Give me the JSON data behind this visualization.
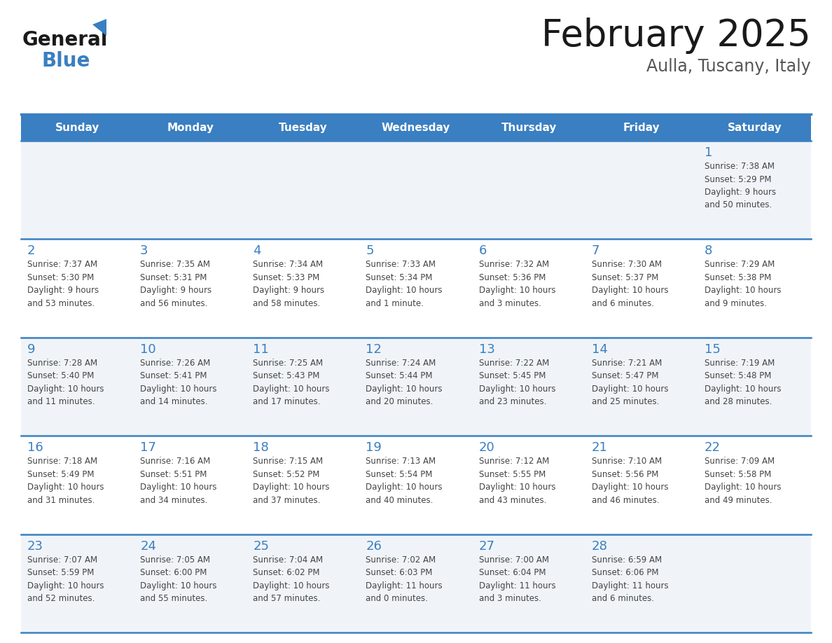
{
  "title": "February 2025",
  "subtitle": "Aulla, Tuscany, Italy",
  "header_bg": "#3A7FC1",
  "header_fg": "#FFFFFF",
  "row_colors": [
    "#F0F4F8",
    "#FFFFFF",
    "#F0F4F8",
    "#FFFFFF",
    "#F0F4F8"
  ],
  "day_num_color": "#3A7FC1",
  "info_color": "#444444",
  "separator_color": "#3A7FC1",
  "days_of_week": [
    "Sunday",
    "Monday",
    "Tuesday",
    "Wednesday",
    "Thursday",
    "Friday",
    "Saturday"
  ],
  "weeks": [
    [
      {
        "day": null,
        "info": null
      },
      {
        "day": null,
        "info": null
      },
      {
        "day": null,
        "info": null
      },
      {
        "day": null,
        "info": null
      },
      {
        "day": null,
        "info": null
      },
      {
        "day": null,
        "info": null
      },
      {
        "day": 1,
        "info": "Sunrise: 7:38 AM\nSunset: 5:29 PM\nDaylight: 9 hours\nand 50 minutes."
      }
    ],
    [
      {
        "day": 2,
        "info": "Sunrise: 7:37 AM\nSunset: 5:30 PM\nDaylight: 9 hours\nand 53 minutes."
      },
      {
        "day": 3,
        "info": "Sunrise: 7:35 AM\nSunset: 5:31 PM\nDaylight: 9 hours\nand 56 minutes."
      },
      {
        "day": 4,
        "info": "Sunrise: 7:34 AM\nSunset: 5:33 PM\nDaylight: 9 hours\nand 58 minutes."
      },
      {
        "day": 5,
        "info": "Sunrise: 7:33 AM\nSunset: 5:34 PM\nDaylight: 10 hours\nand 1 minute."
      },
      {
        "day": 6,
        "info": "Sunrise: 7:32 AM\nSunset: 5:36 PM\nDaylight: 10 hours\nand 3 minutes."
      },
      {
        "day": 7,
        "info": "Sunrise: 7:30 AM\nSunset: 5:37 PM\nDaylight: 10 hours\nand 6 minutes."
      },
      {
        "day": 8,
        "info": "Sunrise: 7:29 AM\nSunset: 5:38 PM\nDaylight: 10 hours\nand 9 minutes."
      }
    ],
    [
      {
        "day": 9,
        "info": "Sunrise: 7:28 AM\nSunset: 5:40 PM\nDaylight: 10 hours\nand 11 minutes."
      },
      {
        "day": 10,
        "info": "Sunrise: 7:26 AM\nSunset: 5:41 PM\nDaylight: 10 hours\nand 14 minutes."
      },
      {
        "day": 11,
        "info": "Sunrise: 7:25 AM\nSunset: 5:43 PM\nDaylight: 10 hours\nand 17 minutes."
      },
      {
        "day": 12,
        "info": "Sunrise: 7:24 AM\nSunset: 5:44 PM\nDaylight: 10 hours\nand 20 minutes."
      },
      {
        "day": 13,
        "info": "Sunrise: 7:22 AM\nSunset: 5:45 PM\nDaylight: 10 hours\nand 23 minutes."
      },
      {
        "day": 14,
        "info": "Sunrise: 7:21 AM\nSunset: 5:47 PM\nDaylight: 10 hours\nand 25 minutes."
      },
      {
        "day": 15,
        "info": "Sunrise: 7:19 AM\nSunset: 5:48 PM\nDaylight: 10 hours\nand 28 minutes."
      }
    ],
    [
      {
        "day": 16,
        "info": "Sunrise: 7:18 AM\nSunset: 5:49 PM\nDaylight: 10 hours\nand 31 minutes."
      },
      {
        "day": 17,
        "info": "Sunrise: 7:16 AM\nSunset: 5:51 PM\nDaylight: 10 hours\nand 34 minutes."
      },
      {
        "day": 18,
        "info": "Sunrise: 7:15 AM\nSunset: 5:52 PM\nDaylight: 10 hours\nand 37 minutes."
      },
      {
        "day": 19,
        "info": "Sunrise: 7:13 AM\nSunset: 5:54 PM\nDaylight: 10 hours\nand 40 minutes."
      },
      {
        "day": 20,
        "info": "Sunrise: 7:12 AM\nSunset: 5:55 PM\nDaylight: 10 hours\nand 43 minutes."
      },
      {
        "day": 21,
        "info": "Sunrise: 7:10 AM\nSunset: 5:56 PM\nDaylight: 10 hours\nand 46 minutes."
      },
      {
        "day": 22,
        "info": "Sunrise: 7:09 AM\nSunset: 5:58 PM\nDaylight: 10 hours\nand 49 minutes."
      }
    ],
    [
      {
        "day": 23,
        "info": "Sunrise: 7:07 AM\nSunset: 5:59 PM\nDaylight: 10 hours\nand 52 minutes."
      },
      {
        "day": 24,
        "info": "Sunrise: 7:05 AM\nSunset: 6:00 PM\nDaylight: 10 hours\nand 55 minutes."
      },
      {
        "day": 25,
        "info": "Sunrise: 7:04 AM\nSunset: 6:02 PM\nDaylight: 10 hours\nand 57 minutes."
      },
      {
        "day": 26,
        "info": "Sunrise: 7:02 AM\nSunset: 6:03 PM\nDaylight: 11 hours\nand 0 minutes."
      },
      {
        "day": 27,
        "info": "Sunrise: 7:00 AM\nSunset: 6:04 PM\nDaylight: 11 hours\nand 3 minutes."
      },
      {
        "day": 28,
        "info": "Sunrise: 6:59 AM\nSunset: 6:06 PM\nDaylight: 11 hours\nand 6 minutes."
      },
      {
        "day": null,
        "info": null
      }
    ]
  ],
  "logo_general_color": "#1A1A1A",
  "logo_blue_color": "#3A7FC1",
  "logo_triangle_color": "#3A7FC1",
  "title_color": "#1A1A1A",
  "subtitle_color": "#555555"
}
